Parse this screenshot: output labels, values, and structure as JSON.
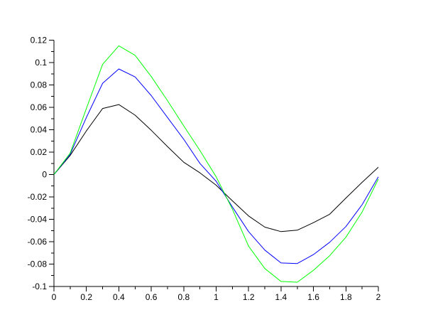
{
  "window": {
    "background": "#ffffff"
  },
  "chart_data": {
    "type": "line",
    "title": "",
    "xlabel": "",
    "ylabel": "",
    "grid": false,
    "legend": null,
    "axis_color": "#000000",
    "xlim": [
      0,
      2
    ],
    "ylim": [
      -0.1,
      0.12
    ],
    "x_major_tick_step": 0.2,
    "x_minor_tick_step": 0.1,
    "y_major_tick_step": 0.02,
    "y_minor_tick_step": 0.01,
    "x_tick_labels": [
      "0",
      "0.2",
      "0.4",
      "0.6",
      "0.8",
      "1",
      "1.2",
      "1.4",
      "1.6",
      "1.8",
      "2"
    ],
    "y_tick_labels": [
      "0.12",
      "0.1",
      "0.08",
      "0.06",
      "0.04",
      "0.02",
      "0",
      "-0.02",
      "-0.04",
      "-0.06",
      "-0.08",
      "-0.1"
    ],
    "x": [
      0,
      0.1,
      0.2,
      0.3,
      0.4,
      0.5,
      0.6,
      0.7,
      0.8,
      0.9,
      1.0,
      1.1,
      1.2,
      1.3,
      1.4,
      1.5,
      1.6,
      1.7,
      1.8,
      1.9,
      2.0
    ],
    "series": [
      {
        "name": "black-curve",
        "color": "#000000",
        "values": [
          0,
          0.017,
          0.039,
          0.059,
          0.0625,
          0.053,
          0.0395,
          0.025,
          0.011,
          0.0015,
          -0.0095,
          -0.0235,
          -0.037,
          -0.047,
          -0.051,
          -0.0497,
          -0.043,
          -0.0355,
          -0.021,
          -0.007,
          0.0065
        ]
      },
      {
        "name": "blue-curve",
        "color": "#0000ff",
        "values": [
          0,
          0.018,
          0.051,
          0.0815,
          0.0943,
          0.0872,
          0.0705,
          0.051,
          0.0315,
          0.01,
          -0.006,
          -0.029,
          -0.051,
          -0.0675,
          -0.079,
          -0.0795,
          -0.0715,
          -0.0605,
          -0.0465,
          -0.027,
          -0.002
        ]
      },
      {
        "name": "green-curve",
        "color": "#00ff00",
        "values": [
          0,
          0.019,
          0.059,
          0.0985,
          0.115,
          0.1065,
          0.0875,
          0.066,
          0.0435,
          0.0215,
          -0.002,
          -0.031,
          -0.064,
          -0.084,
          -0.0955,
          -0.0962,
          -0.0855,
          -0.0725,
          -0.056,
          -0.0335,
          -0.004
        ]
      }
    ]
  }
}
